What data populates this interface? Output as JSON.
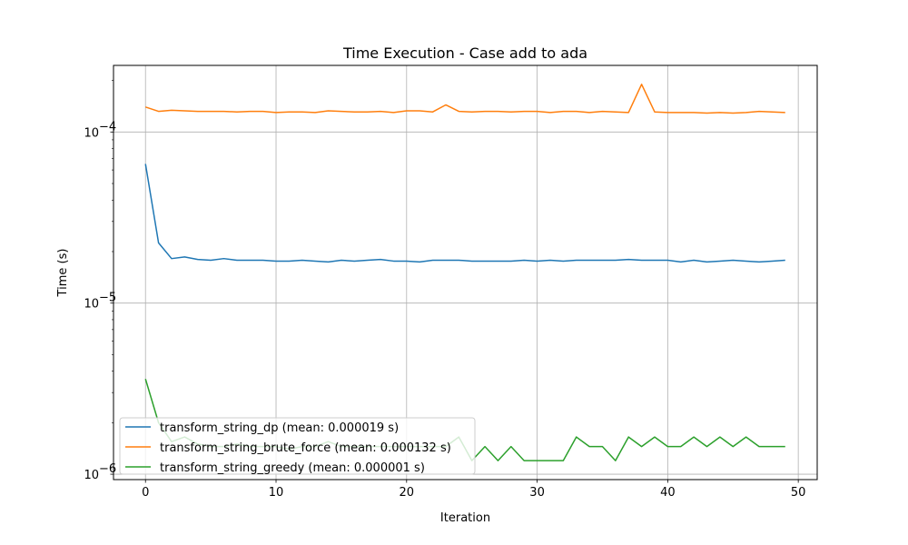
{
  "chart_data": {
    "type": "line",
    "title": "Time Execution - Case add to ada",
    "xlabel": "Iteration",
    "ylabel": "Time (s)",
    "yscale": "log",
    "xlim": [
      -2.45,
      51.45
    ],
    "ylim": [
      9.3e-07,
      0.000245
    ],
    "xticks": [
      0,
      10,
      20,
      30,
      40,
      50
    ],
    "xtick_labels": [
      "0",
      "10",
      "20",
      "30",
      "40",
      "50"
    ],
    "yticks": [
      1e-06,
      1e-05,
      0.0001
    ],
    "ytick_labels": [
      {
        "base": "10",
        "exp": "−6"
      },
      {
        "base": "10",
        "exp": "−5"
      },
      {
        "base": "10",
        "exp": "−4"
      }
    ],
    "grid": true,
    "legend_position": "lower-left",
    "x": [
      0,
      1,
      2,
      3,
      4,
      5,
      6,
      7,
      8,
      9,
      10,
      11,
      12,
      13,
      14,
      15,
      16,
      17,
      18,
      19,
      20,
      21,
      22,
      23,
      24,
      25,
      26,
      27,
      28,
      29,
      30,
      31,
      32,
      33,
      34,
      35,
      36,
      37,
      38,
      39,
      40,
      41,
      42,
      43,
      44,
      45,
      46,
      47,
      48,
      49
    ],
    "series": [
      {
        "name": "transform_string_dp (mean: 0.000019 s)",
        "color": "#1f77b4",
        "values": [
          6.5e-05,
          2.25e-05,
          1.82e-05,
          1.86e-05,
          1.8e-05,
          1.78e-05,
          1.82e-05,
          1.78e-05,
          1.78e-05,
          1.78e-05,
          1.76e-05,
          1.76e-05,
          1.78e-05,
          1.76e-05,
          1.74e-05,
          1.78e-05,
          1.76e-05,
          1.78e-05,
          1.8e-05,
          1.76e-05,
          1.76e-05,
          1.74e-05,
          1.78e-05,
          1.78e-05,
          1.78e-05,
          1.76e-05,
          1.76e-05,
          1.76e-05,
          1.76e-05,
          1.78e-05,
          1.76e-05,
          1.78e-05,
          1.76e-05,
          1.78e-05,
          1.78e-05,
          1.78e-05,
          1.78e-05,
          1.8e-05,
          1.78e-05,
          1.78e-05,
          1.78e-05,
          1.74e-05,
          1.78e-05,
          1.74e-05,
          1.76e-05,
          1.78e-05,
          1.76e-05,
          1.74e-05,
          1.76e-05,
          1.78e-05
        ]
      },
      {
        "name": "transform_string_brute_force (mean: 0.000132 s)",
        "color": "#ff7f0e",
        "values": [
          0.00014,
          0.000132,
          0.000134,
          0.000133,
          0.000132,
          0.000132,
          0.000132,
          0.000131,
          0.000132,
          0.000132,
          0.00013,
          0.000131,
          0.000131,
          0.00013,
          0.000133,
          0.000132,
          0.000131,
          0.000131,
          0.000132,
          0.00013,
          0.000133,
          0.000133,
          0.000131,
          0.000144,
          0.000132,
          0.000131,
          0.000132,
          0.000132,
          0.000131,
          0.000132,
          0.000132,
          0.00013,
          0.000132,
          0.000132,
          0.00013,
          0.000132,
          0.000131,
          0.00013,
          0.00019,
          0.000131,
          0.00013,
          0.00013,
          0.00013,
          0.000129,
          0.00013,
          0.000129,
          0.00013,
          0.000132,
          0.000131,
          0.00013
        ]
      },
      {
        "name": "transform_string_greedy (mean: 0.000001 s)",
        "color": "#2ca02c",
        "values": [
          3.6e-06,
          2e-06,
          1.55e-06,
          1.65e-06,
          1.5e-06,
          1.45e-06,
          1.45e-06,
          1.5e-06,
          1.45e-06,
          1.45e-06,
          1.45e-06,
          1.4e-06,
          1.45e-06,
          1.45e-06,
          1.55e-06,
          1.45e-06,
          1.45e-06,
          1.45e-06,
          1.45e-06,
          1.45e-06,
          1.45e-06,
          1.45e-06,
          1.45e-06,
          1.45e-06,
          1.65e-06,
          1.2e-06,
          1.45e-06,
          1.2e-06,
          1.45e-06,
          1.2e-06,
          1.2e-06,
          1.2e-06,
          1.2e-06,
          1.65e-06,
          1.45e-06,
          1.45e-06,
          1.2e-06,
          1.65e-06,
          1.45e-06,
          1.65e-06,
          1.45e-06,
          1.45e-06,
          1.65e-06,
          1.45e-06,
          1.65e-06,
          1.45e-06,
          1.65e-06,
          1.45e-06,
          1.45e-06,
          1.45e-06
        ]
      }
    ]
  }
}
